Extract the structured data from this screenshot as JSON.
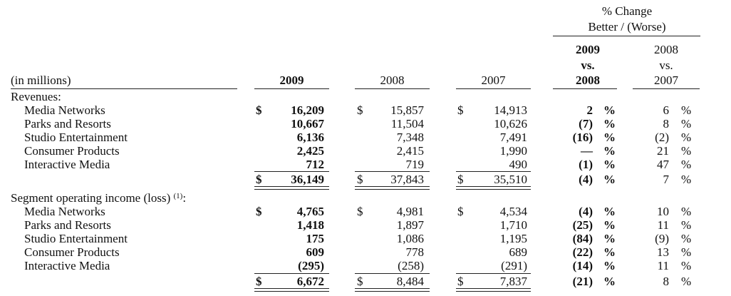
{
  "header": {
    "pct_change_line1": "% Change",
    "pct_change_line2": "Better / (Worse)",
    "units_label": "(in millions)",
    "col_2009": "2009",
    "col_2008": "2008",
    "col_2007": "2007",
    "cmp1": [
      "2009",
      "vs.",
      "2008"
    ],
    "cmp2": [
      "2008",
      "vs.",
      "2007"
    ]
  },
  "revenues": {
    "section_label": "Revenues:",
    "rows": [
      {
        "label": "Media Networks",
        "y2009": "16,209",
        "y2008": "15,857",
        "y2007": "14,913",
        "chg1": "2",
        "chg2": "6"
      },
      {
        "label": "Parks and Resorts",
        "y2009": "10,667",
        "y2008": "11,504",
        "y2007": "10,626",
        "chg1": "(7)",
        "chg2": "8"
      },
      {
        "label": "Studio Entertainment",
        "y2009": "6,136",
        "y2008": "7,348",
        "y2007": "7,491",
        "chg1": "(16)",
        "chg2": "(2)"
      },
      {
        "label": "Consumer Products",
        "y2009": "2,425",
        "y2008": "2,415",
        "y2007": "1,990",
        "chg1": "—",
        "chg2": "21"
      },
      {
        "label": "Interactive Media",
        "y2009": "712",
        "y2008": "719",
        "y2007": "490",
        "chg1": "(1)",
        "chg2": "47"
      }
    ],
    "total": {
      "y2009": "36,149",
      "y2008": "37,843",
      "y2007": "35,510",
      "chg1": "(4)",
      "chg2": "7"
    }
  },
  "segment_income": {
    "section_label": "Segment operating income (loss)",
    "footnote_mark": "(1)",
    "colon": ":",
    "rows": [
      {
        "label": "Media Networks",
        "y2009": "4,765",
        "y2008": "4,981",
        "y2007": "4,534",
        "chg1": "(4)",
        "chg2": "10"
      },
      {
        "label": "Parks and Resorts",
        "y2009": "1,418",
        "y2008": "1,897",
        "y2007": "1,710",
        "chg1": "(25)",
        "chg2": "11"
      },
      {
        "label": "Studio Entertainment",
        "y2009": "175",
        "y2008": "1,086",
        "y2007": "1,195",
        "chg1": "(84)",
        "chg2": "(9)"
      },
      {
        "label": "Consumer Products",
        "y2009": "609",
        "y2008": "778",
        "y2007": "689",
        "chg1": "(22)",
        "chg2": "13"
      },
      {
        "label": "Interactive Media",
        "y2009": "(295)",
        "y2008": "(258)",
        "y2007": "(291)",
        "chg1": "(14)",
        "chg2": "11"
      }
    ],
    "total": {
      "y2009": "6,672",
      "y2008": "8,484",
      "y2007": "7,837",
      "chg1": "(21)",
      "chg2": "8"
    }
  },
  "symbols": {
    "dollar": "$",
    "percent": "%"
  }
}
